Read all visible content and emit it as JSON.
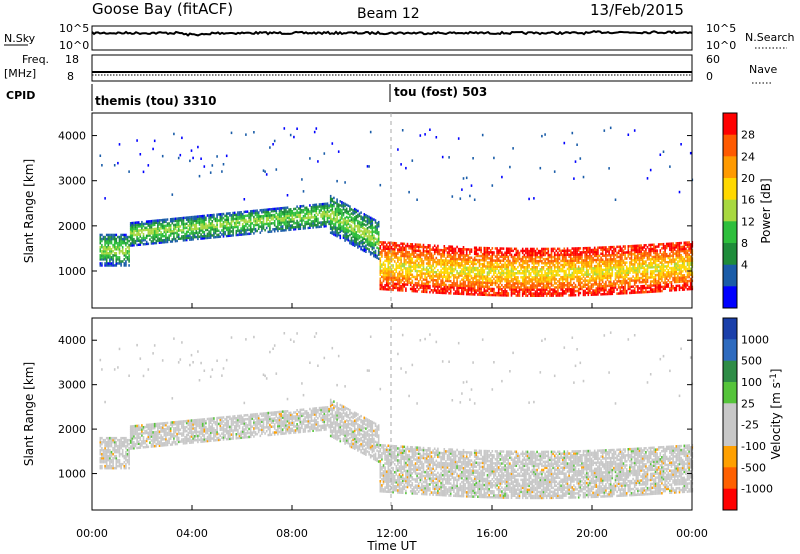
{
  "header": {
    "station": "Goose Bay (fitACF)",
    "beam": "Beam 12",
    "date": "13/Feb/2015"
  },
  "top_panels": {
    "nsky_label": "N.Sky",
    "nsearch_label": "N.Search",
    "freq_label_1": "Freq.",
    "freq_label_2": "[MHz]",
    "nave_label": "Nave",
    "cpid_label": "CPID",
    "noise_left_ticks": [
      "10^5",
      "10^0"
    ],
    "noise_right_ticks": [
      "10^5",
      "10^0"
    ],
    "freq_left_ticks": [
      "18",
      "8"
    ],
    "freq_right_ticks": [
      "60",
      "0"
    ]
  },
  "cpid_segments": [
    {
      "start_hour": 0,
      "label": "themis (tou) 3310"
    },
    {
      "start_hour": 12,
      "label": "tou (fost) 503"
    }
  ],
  "power_panel": {
    "ylabel": "Slant Range [km]",
    "colorbar_label": "Power [dB]",
    "colorbar_ticks": [
      "28",
      "24",
      "20",
      "16",
      "12",
      "8",
      "4"
    ],
    "colorbar_colors": [
      "#ff0000",
      "#ff5a00",
      "#ff9a00",
      "#ffd800",
      "#a8d840",
      "#2ebf3c",
      "#1e8c3a",
      "#1a5ca8",
      "#0000ff"
    ]
  },
  "velocity_panel": {
    "ylabel": "Slant Range [km]",
    "colorbar_label": "Velocity [m s^-1]",
    "colorbar_ticks": [
      "1000",
      "500",
      "100",
      "25",
      "-25",
      "-100",
      "-500",
      "-1000"
    ],
    "colorbar_colors": [
      "#1a3faa",
      "#2e6bbf",
      "#2e8c46",
      "#55c43a",
      "#c8c8c8",
      "#c8c8c8",
      "#ffa000",
      "#ff6000",
      "#ff0000"
    ]
  },
  "x_axis": {
    "label": "Time UT",
    "ticks": [
      "00:00",
      "04:00",
      "08:00",
      "12:00",
      "16:00",
      "20:00",
      "00:00"
    ]
  },
  "chart_data": [
    {
      "type": "heatmap",
      "title": "Power",
      "x_range_hours": [
        0,
        24
      ],
      "ylim": [
        180,
        4500
      ],
      "yticks": [
        1000,
        2000,
        3000,
        4000
      ],
      "ylabel": "Slant Range [km]",
      "xlabel": "Time UT",
      "colorbar": {
        "label": "Power [dB]",
        "range": [
          0,
          30
        ],
        "ticks": [
          4,
          8,
          12,
          16,
          20,
          24,
          28
        ]
      }
    },
    {
      "type": "heatmap",
      "title": "Velocity",
      "x_range_hours": [
        0,
        24
      ],
      "ylim": [
        180,
        4500
      ],
      "yticks": [
        1000,
        2000,
        3000,
        4000
      ],
      "ylabel": "Slant Range [km]",
      "xlabel": "Time UT",
      "colorbar": {
        "label": "Velocity [m s^-1]",
        "ticks": [
          1000,
          500,
          100,
          25,
          -25,
          -100,
          -500,
          -1000
        ]
      }
    }
  ]
}
